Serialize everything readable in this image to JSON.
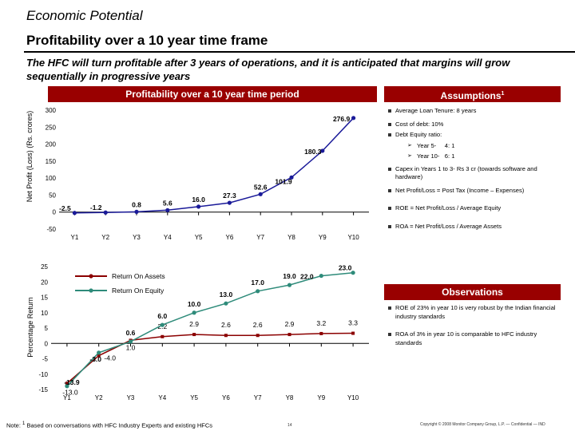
{
  "header": {
    "title": "Economic Potential",
    "subtitle": "Profitability over a 10 year time frame",
    "intro": "The HFC will turn profitable after 3 years of operations, and it is anticipated that margins will grow sequentially in progressive years"
  },
  "chart_banner": "Profitability over a 10 year time period",
  "chart_data": [
    {
      "type": "line",
      "ylabel": "Net Profit (Loss) (Rs. crores)",
      "categories": [
        "Y1",
        "Y2",
        "Y3",
        "Y4",
        "Y5",
        "Y6",
        "Y7",
        "Y8",
        "Y9",
        "Y10"
      ],
      "yticks": [
        "300",
        "250",
        "200",
        "150",
        "100",
        "50",
        "0",
        "-50"
      ],
      "ylim": [
        -50,
        300
      ],
      "series": [
        {
          "values": [
            -2.5,
            -1.2,
            0.8,
            5.6,
            16.0,
            27.3,
            52.6,
            101.9,
            180.3,
            276.9
          ],
          "labels": [
            "-2.5",
            "-1.2",
            "0.8",
            "5.6",
            "16.0",
            "27.3",
            "52.6",
            "101.9",
            "180.3",
            "276.9"
          ],
          "color": "#1a1a99"
        }
      ]
    },
    {
      "type": "line",
      "ylabel": "Percentage Return",
      "categories": [
        "Y1",
        "Y2",
        "Y3",
        "Y4",
        "Y5",
        "Y6",
        "Y7",
        "Y8",
        "Y9",
        "Y10"
      ],
      "yticks": [
        "25",
        "20",
        "15",
        "10",
        "5",
        "0",
        "-5",
        "-10",
        "-15"
      ],
      "ylim": [
        -15,
        25
      ],
      "legend": "top-left",
      "series": [
        {
          "name": "Return On Assets",
          "values": [
            -13.0,
            -4.0,
            1.0,
            2.2,
            2.9,
            2.6,
            2.6,
            2.9,
            3.2,
            3.3
          ],
          "labels": [
            "-13.0",
            "-4.0",
            "1.0",
            "2.2",
            "2.9",
            "2.6",
            "2.6",
            "2.9",
            "3.2",
            "3.3"
          ],
          "color": "#8b0000"
        },
        {
          "name": "Return On Equity",
          "values": [
            -13.9,
            -3.0,
            0.6,
            6.0,
            10.0,
            13.0,
            17.0,
            19.0,
            22.0,
            23.0
          ],
          "labels": [
            "-13.9",
            "-3.0",
            "0.6",
            "6.0",
            "10.0",
            "13.0",
            "17.0",
            "19.0",
            "22.0",
            "23.0"
          ],
          "color": "#2e8b7a"
        }
      ]
    }
  ],
  "assumptions": {
    "title": "Assumptions",
    "title_sup": "1",
    "items": [
      "Average Loan Tenure: 8 years",
      "Cost of debt: 10%",
      "Debt Equity ratio:",
      "Year 5-     4: 1",
      "Year 10-   6: 1",
      "Capex in Years 1 to 3- Rs 3 cr (towards software and hardware)",
      "Net Profit/Loss = Post Tax (Income – Expenses)",
      "ROE = Net Profit/Loss / Average  Equity",
      "ROA = Net Profit/Loss / Average  Assets"
    ]
  },
  "observations": {
    "title": "Observations",
    "items": [
      "ROE of 23% in year 10 is very robust by the Indian financial industry standards",
      "ROA of 3% in year 10 is comparable to HFC industry standards"
    ]
  },
  "footer": {
    "note_prefix": "Note: ",
    "note_sup": "1",
    "note_text": " Based on conversations with HFC Industry Experts and existing HFCs",
    "page": "14",
    "copyright": "Copyright © 2008 Monitor Company Group, L.P. — Confidential — IND"
  }
}
